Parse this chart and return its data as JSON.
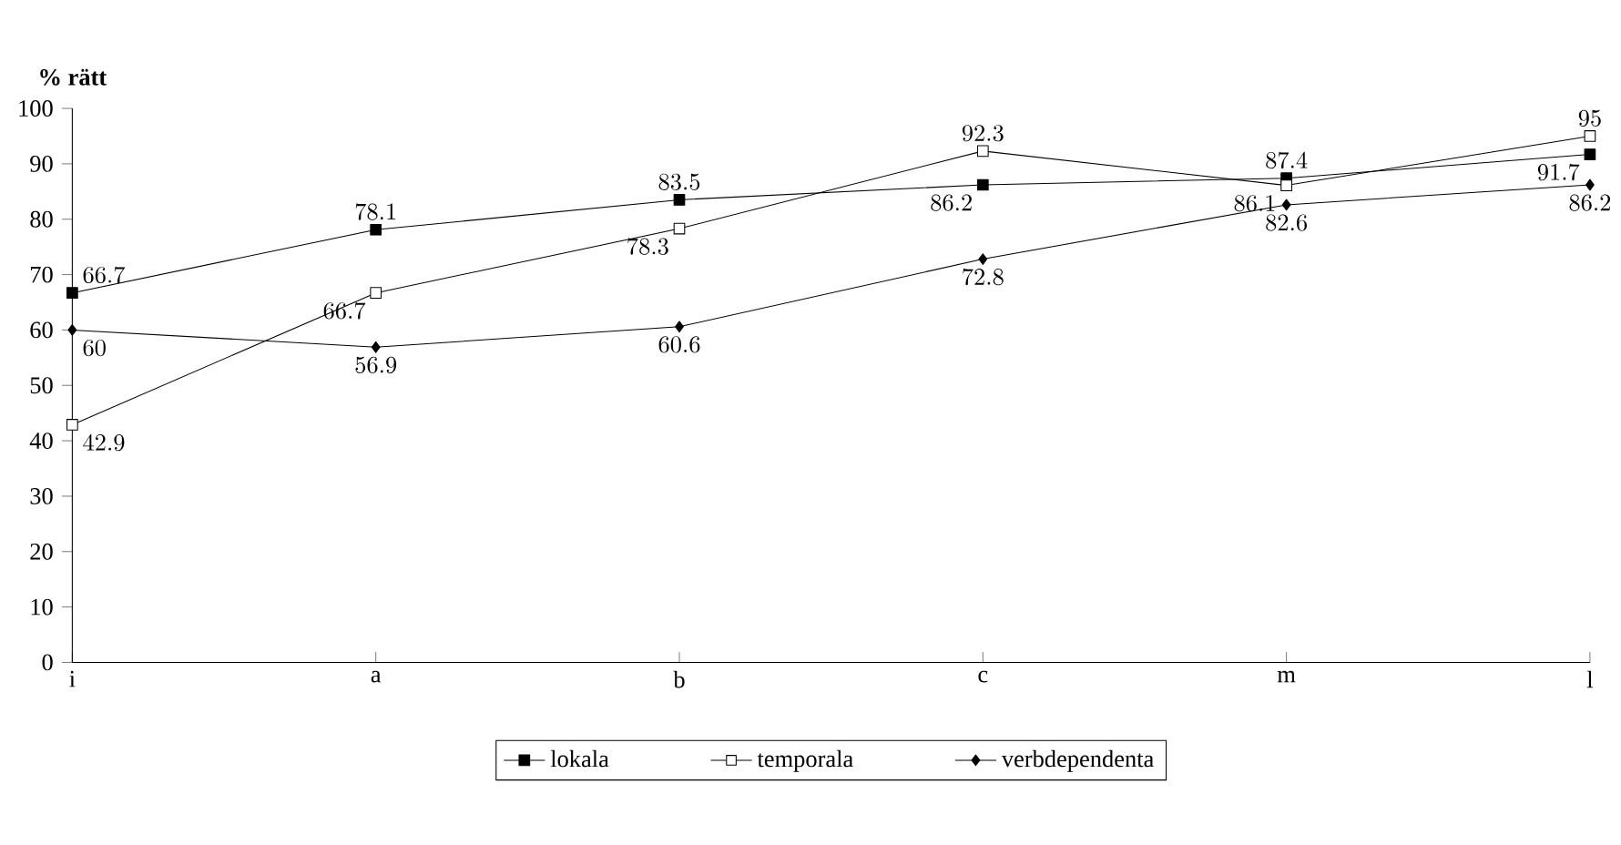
{
  "chart_data": {
    "type": "line",
    "ylabel": "% rätt",
    "categories": [
      "i",
      "a",
      "b",
      "c",
      "m",
      "l"
    ],
    "series": [
      {
        "name": "lokala",
        "color": "#000000",
        "marker": "square",
        "values": [
          66.7,
          78.1,
          83.5,
          86.2,
          87.4,
          91.7
        ]
      },
      {
        "name": "temporala",
        "color": "#000000",
        "colors": [
          "#ffffff",
          "#ffffff",
          "#ffffff",
          "#ffffff",
          "#ffffff",
          "#ffffff"
        ],
        "marker": "square",
        "values": [
          42.9,
          66.7,
          78.3,
          92.3,
          86.1,
          95
        ]
      },
      {
        "name": "verbdependenta",
        "color": "#000000",
        "marker": "diamond",
        "values": [
          60,
          56.9,
          60.6,
          72.8,
          82.6,
          86.2
        ]
      }
    ],
    "ylim": [
      0,
      100
    ],
    "yticks": [
      0,
      10,
      20,
      30,
      40,
      50,
      60,
      70,
      80,
      90,
      100
    ],
    "data_labels": true,
    "legend": "bottom",
    "grid": false
  }
}
